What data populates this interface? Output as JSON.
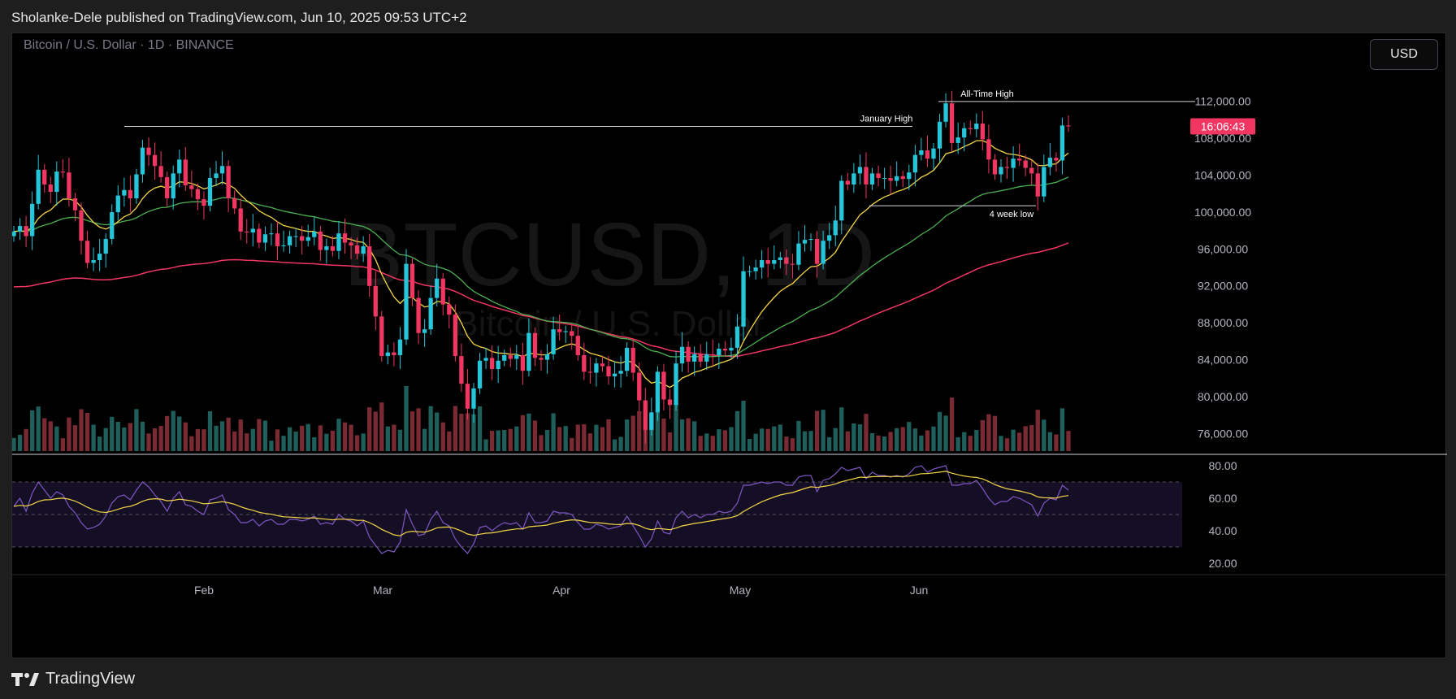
{
  "header": {
    "text": "Sholanke-Dele published on TradingView.com, Jun 10, 2025 09:53 UTC+2"
  },
  "chart": {
    "symbol_title": "Bitcoin / U.S. Dollar · 1D · BINANCE",
    "watermark_symbol": "BTCUSD, 1D",
    "watermark_name": "Bitcoin / U.S. Dollar",
    "currency_button": "USD",
    "countdown": "16:06:43"
  },
  "colors": {
    "up": "#26c6da",
    "down": "#f23662",
    "ema_fast": "#f5d547",
    "ema_mid": "#4caf50",
    "ema_slow": "#f23662",
    "rsi": "#7e57c2",
    "rsi_ma": "#f5d547",
    "vol_up": "#1f5f5b",
    "vol_down": "#7a2a33"
  },
  "chart_data": {
    "type": "candlestick",
    "ylim": [
      74000,
      114000
    ],
    "y_ticks": [
      "112,000.00",
      "108,000.00",
      "104,000.00",
      "100,000.00",
      "96,000.00",
      "92,000.00",
      "88,000.00",
      "84,000.00",
      "80,000.00",
      "76,000.00"
    ],
    "x_labels": [
      "Feb",
      "Mar",
      "Apr",
      "May",
      "Jun"
    ],
    "annotations": [
      {
        "text": "All-Time High",
        "price": 111900
      },
      {
        "text": "January High",
        "price": 109200
      },
      {
        "text": "4 week low",
        "price": 100600
      }
    ],
    "rsi_ticks": [
      "80.00",
      "60.00",
      "40.00",
      "20.00"
    ],
    "closes": [
      97800,
      98400,
      97300,
      100800,
      104500,
      102900,
      102100,
      104300,
      104200,
      101400,
      100100,
      96800,
      94400,
      94700,
      95400,
      97000,
      99900,
      101700,
      102300,
      101400,
      104000,
      106900,
      106100,
      104900,
      103700,
      101400,
      104100,
      105600,
      102800,
      102400,
      101300,
      100600,
      103600,
      104100,
      104900,
      101400,
      100300,
      97800,
      97700,
      98100,
      96600,
      97500,
      97600,
      96200,
      96300,
      97300,
      97300,
      96800,
      97200,
      97800,
      95800,
      96200,
      95700,
      97600,
      96600,
      96300,
      95400,
      96200,
      91900,
      88600,
      84300,
      84700,
      84400,
      86100,
      94300,
      90600,
      86800,
      87200,
      90600,
      92700,
      89900,
      88800,
      84300,
      81300,
      78600,
      80800,
      83800,
      84100,
      82900,
      83800,
      84400,
      84000,
      84400,
      82700,
      86800,
      84100,
      83900,
      84500,
      87200,
      86900,
      87000,
      86500,
      84400,
      82600,
      82500,
      83500,
      83200,
      82100,
      82400,
      82700,
      85200,
      82500,
      79500,
      76300,
      78200,
      82600,
      79600,
      79000,
      83500,
      85300,
      83700,
      84500,
      83700,
      84500,
      84400,
      85100,
      84900,
      85200,
      87500,
      93500,
      93500,
      93900,
      94700,
      94300,
      94700,
      95000,
      94300,
      94200,
      96500,
      96900,
      97000,
      94300,
      96800,
      97400,
      99000,
      103300,
      102900,
      104100,
      104800,
      102900,
      104100,
      103600,
      103600,
      103300,
      103800,
      103500,
      104200,
      106100,
      106600,
      105700,
      106800,
      109700,
      111700,
      107400,
      108000,
      109000,
      108900,
      109500,
      107800,
      105600,
      104000,
      104800,
      104700,
      105700,
      105500,
      104700,
      104100,
      101600,
      104800,
      105800,
      105500,
      109300,
      109200
    ],
    "rsi_values": [
      55,
      60,
      52,
      63,
      70,
      65,
      60,
      64,
      62,
      55,
      51,
      45,
      41,
      42,
      44,
      49,
      57,
      61,
      62,
      59,
      65,
      70,
      67,
      62,
      58,
      52,
      60,
      64,
      56,
      55,
      52,
      50,
      59,
      60,
      62,
      53,
      50,
      45,
      45,
      47,
      43,
      46,
      47,
      44,
      44,
      47,
      47,
      46,
      47,
      49,
      44,
      45,
      44,
      50,
      47,
      46,
      43,
      46,
      36,
      31,
      26,
      28,
      27,
      33,
      53,
      44,
      37,
      38,
      47,
      52,
      45,
      43,
      35,
      30,
      26,
      32,
      42,
      43,
      40,
      43,
      45,
      44,
      45,
      41,
      51,
      45,
      45,
      46,
      52,
      51,
      51,
      50,
      45,
      41,
      41,
      44,
      43,
      41,
      42,
      43,
      49,
      43,
      37,
      30,
      35,
      46,
      39,
      38,
      48,
      52,
      48,
      50,
      48,
      50,
      50,
      52,
      51,
      52,
      57,
      68,
      68,
      69,
      70,
      69,
      70,
      70,
      68,
      68,
      73,
      74,
      74,
      64,
      71,
      72,
      75,
      79,
      77,
      78,
      79,
      72,
      76,
      74,
      74,
      73,
      74,
      73,
      75,
      79,
      80,
      76,
      78,
      79,
      80,
      68,
      68,
      69,
      69,
      71,
      66,
      60,
      56,
      58,
      58,
      61,
      60,
      58,
      56,
      49,
      57,
      60,
      59,
      68,
      65
    ]
  }
}
